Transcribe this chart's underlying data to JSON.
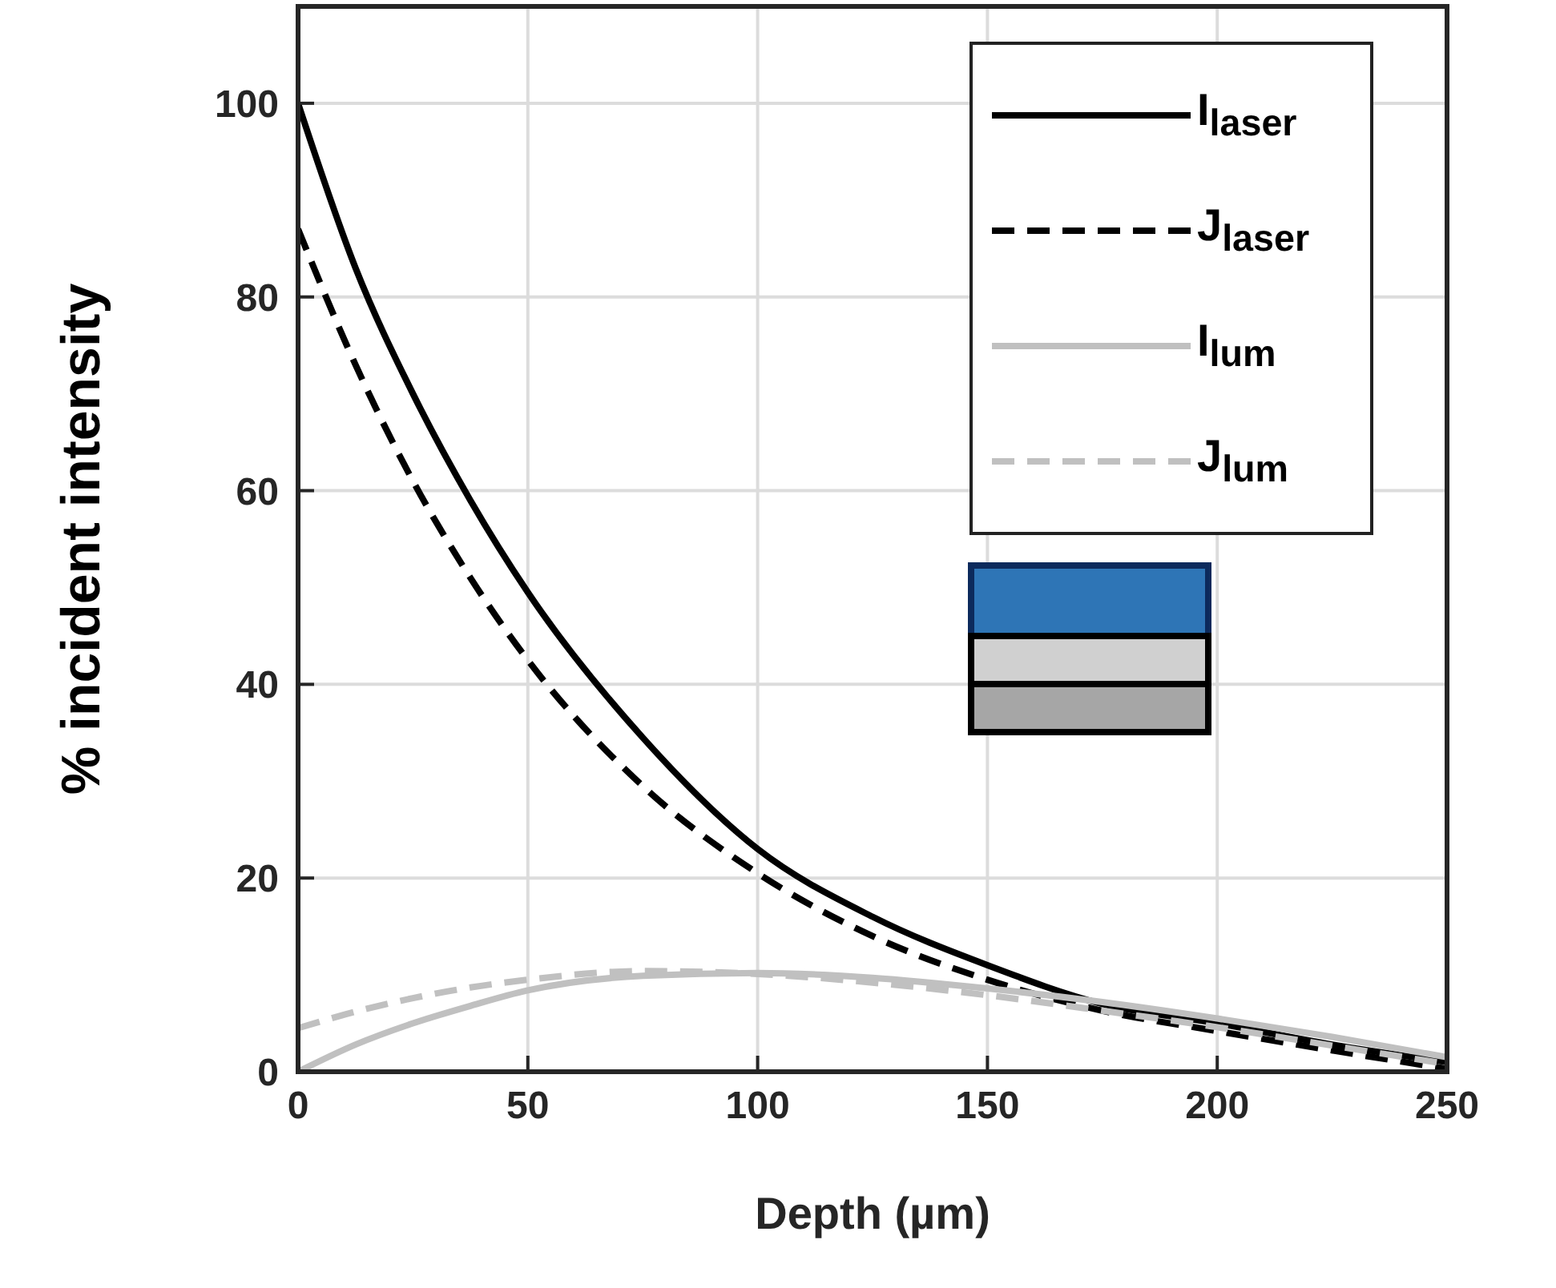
{
  "chart_data": {
    "type": "line",
    "xlabel": "Depth (µm)",
    "ylabel": "% incident intensity",
    "x": [
      0,
      12.5,
      25,
      37.5,
      50,
      75,
      100,
      125,
      150,
      175,
      200,
      225,
      250
    ],
    "series": [
      {
        "name": "I$_{laser}$",
        "color": "#000000",
        "line_style": "solid",
        "values": [
          100,
          83,
          70,
          59,
          49.5,
          34.5,
          23,
          16,
          11,
          7,
          5,
          2.8,
          1
        ]
      },
      {
        "name": "J$_{laser}$",
        "color": "#000000",
        "line_style": "dashed",
        "values": [
          87,
          73,
          61,
          51,
          42.5,
          29.5,
          20.5,
          14,
          9.5,
          6.3,
          4.2,
          2.2,
          0.3
        ]
      },
      {
        "name": "I$_{lum}$",
        "color": "#c0c0c0",
        "line_style": "solid",
        "values": [
          0,
          2.8,
          5,
          6.8,
          8.4,
          9.9,
          10.2,
          9.7,
          8.6,
          7.2,
          5.5,
          3.6,
          1.5
        ]
      },
      {
        "name": "J$_{lum}$",
        "color": "#c0c0c0",
        "line_style": "dashed",
        "values": [
          4.5,
          6.2,
          7.6,
          8.7,
          9.5,
          10.4,
          10.1,
          9.2,
          7.9,
          6.3,
          4.6,
          2.7,
          0.8
        ]
      }
    ],
    "xlim": [
      0,
      250
    ],
    "xticks": [
      0,
      50,
      100,
      150,
      200,
      250
    ],
    "ylim": [
      0,
      110
    ],
    "yticks": [
      0,
      20,
      40,
      60,
      80,
      100
    ],
    "grid": true,
    "legend": "top right",
    "marker": "none"
  }
}
